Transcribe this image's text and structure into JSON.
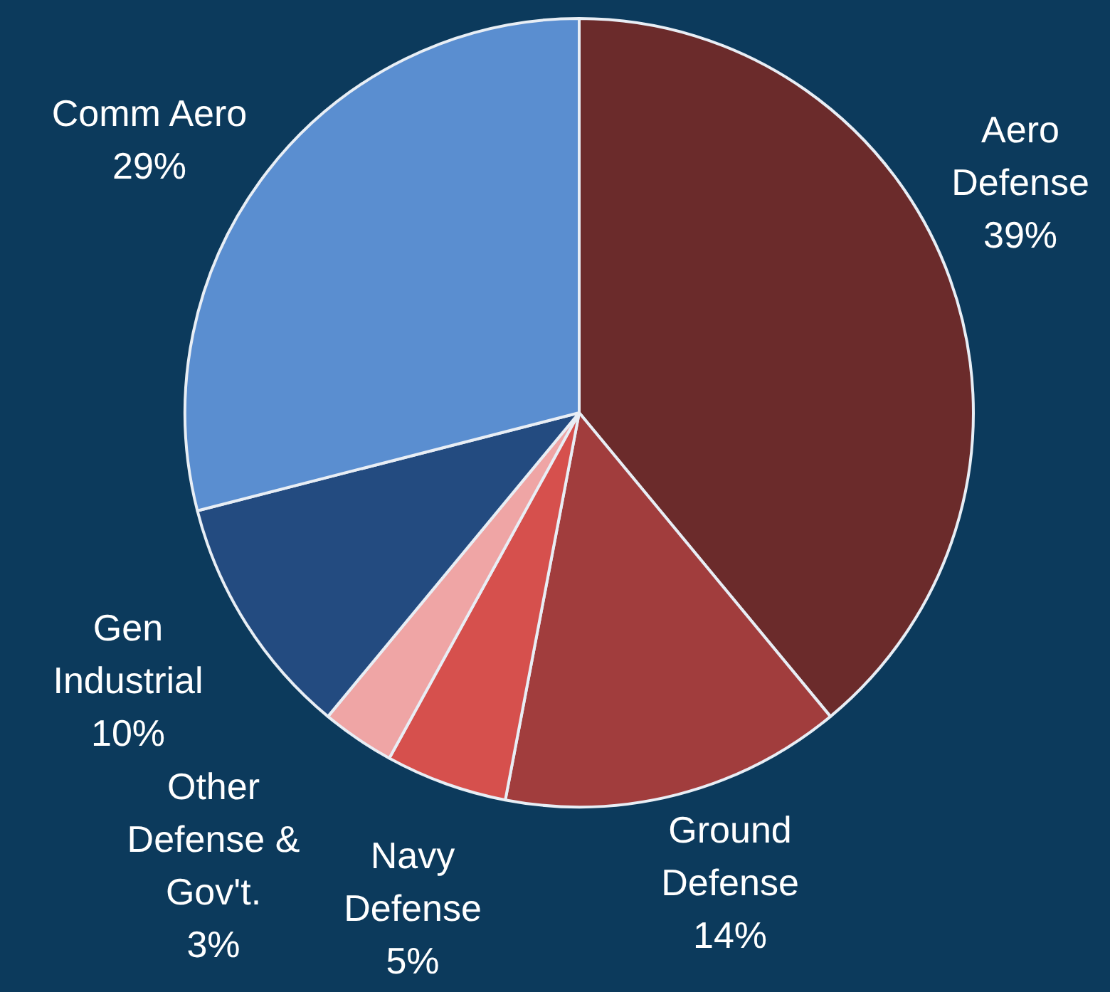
{
  "chart_data": {
    "type": "pie",
    "categories": [
      "Aero Defense",
      "Ground Defense",
      "Navy Defense",
      "Other Defense & Gov't.",
      "Gen Industrial",
      "Comm Aero"
    ],
    "values": [
      39,
      14,
      5,
      3,
      10,
      29
    ],
    "value_labels": [
      "39%",
      "14%",
      "5%",
      "3%",
      "10%",
      "29%"
    ],
    "colors": [
      "#6b2b2b",
      "#a13d3d",
      "#d6504d",
      "#efa5a5",
      "#234b80",
      "#5a8ed0"
    ],
    "legend": false
  }
}
